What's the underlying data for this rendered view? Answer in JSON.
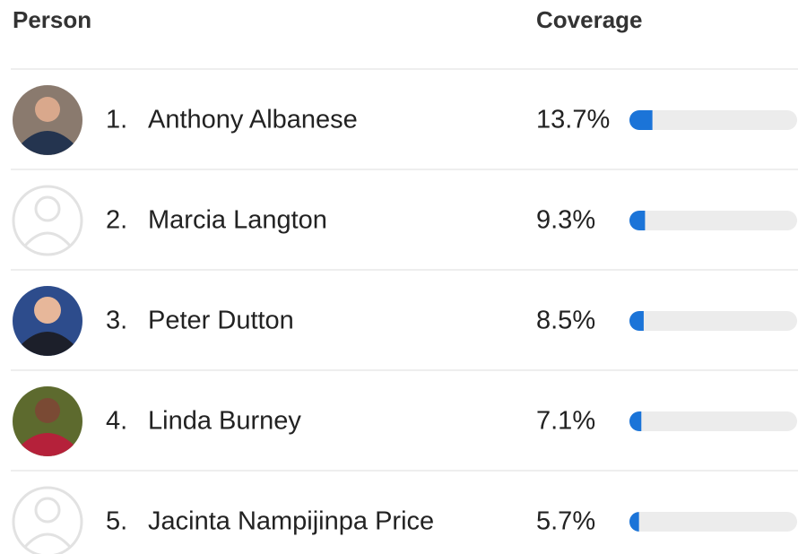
{
  "header": {
    "person": "Person",
    "coverage": "Coverage"
  },
  "coverage_range": [
    0,
    100
  ],
  "rows": [
    {
      "rank": "1.",
      "name": "Anthony Albanese",
      "coverage": {
        "value": 13.7,
        "label": "13.7%"
      }
    },
    {
      "rank": "2.",
      "name": "Marcia Langton",
      "coverage": {
        "value": 9.3,
        "label": "9.3%"
      }
    },
    {
      "rank": "3.",
      "name": "Peter Dutton",
      "coverage": {
        "value": 8.5,
        "label": "8.5%"
      }
    },
    {
      "rank": "4.",
      "name": "Linda Burney",
      "coverage": {
        "value": 7.1,
        "label": "7.1%"
      }
    },
    {
      "rank": "5.",
      "name": "Jacinta Nampijinpa Price",
      "coverage": {
        "value": 5.7,
        "label": "5.7%"
      }
    }
  ]
}
